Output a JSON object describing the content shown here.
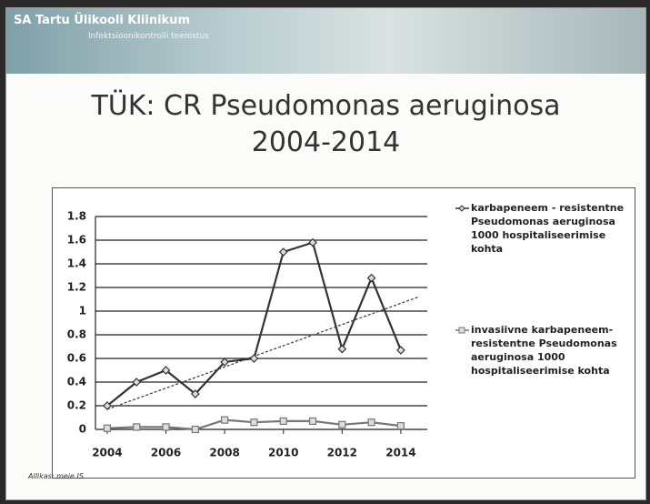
{
  "header": {
    "title": "SA Tartu Ülikooli Kliinikum",
    "subtitle": "Infektsioonikontrolli teenistus"
  },
  "footer": "Allikas: meie IS",
  "chart_data": {
    "type": "line",
    "title": [
      "TÜK: CR Pseudomonas aeruginosa",
      "2004-2014"
    ],
    "x": [
      2004,
      2005,
      2006,
      2007,
      2008,
      2009,
      2010,
      2011,
      2012,
      2013,
      2014
    ],
    "series": [
      {
        "name": "karbapeneem - resistentne Pseudomonas aeruginosa 1000 hospitaliseerimise kohta",
        "color": "#333333",
        "marker": "diamond",
        "values": [
          0.2,
          0.4,
          0.5,
          0.3,
          0.57,
          0.6,
          1.5,
          1.58,
          0.68,
          1.28,
          0.67
        ]
      },
      {
        "name": "invasiivne karbapeneem-resistentne Pseudomonas aeruginosa 1000 hospitaliseerimise kohta",
        "color": "#777777",
        "marker": "square",
        "values": [
          0.01,
          0.02,
          0.02,
          0.0,
          0.08,
          0.06,
          0.07,
          0.07,
          0.04,
          0.06,
          0.03
        ]
      }
    ],
    "trendline": {
      "x": [
        2004,
        2014.6
      ],
      "values": [
        0.17,
        1.12
      ],
      "color": "#444444"
    },
    "xlim": [
      2003.6,
      2014.9
    ],
    "xticks": [
      2004,
      2006,
      2008,
      2010,
      2012,
      2014
    ],
    "ylim": [
      0,
      1.8
    ],
    "yticks": [
      0,
      0.2,
      0.4,
      0.6,
      0.8,
      1,
      1.2,
      1.4,
      1.6,
      1.8
    ],
    "grid": true
  }
}
